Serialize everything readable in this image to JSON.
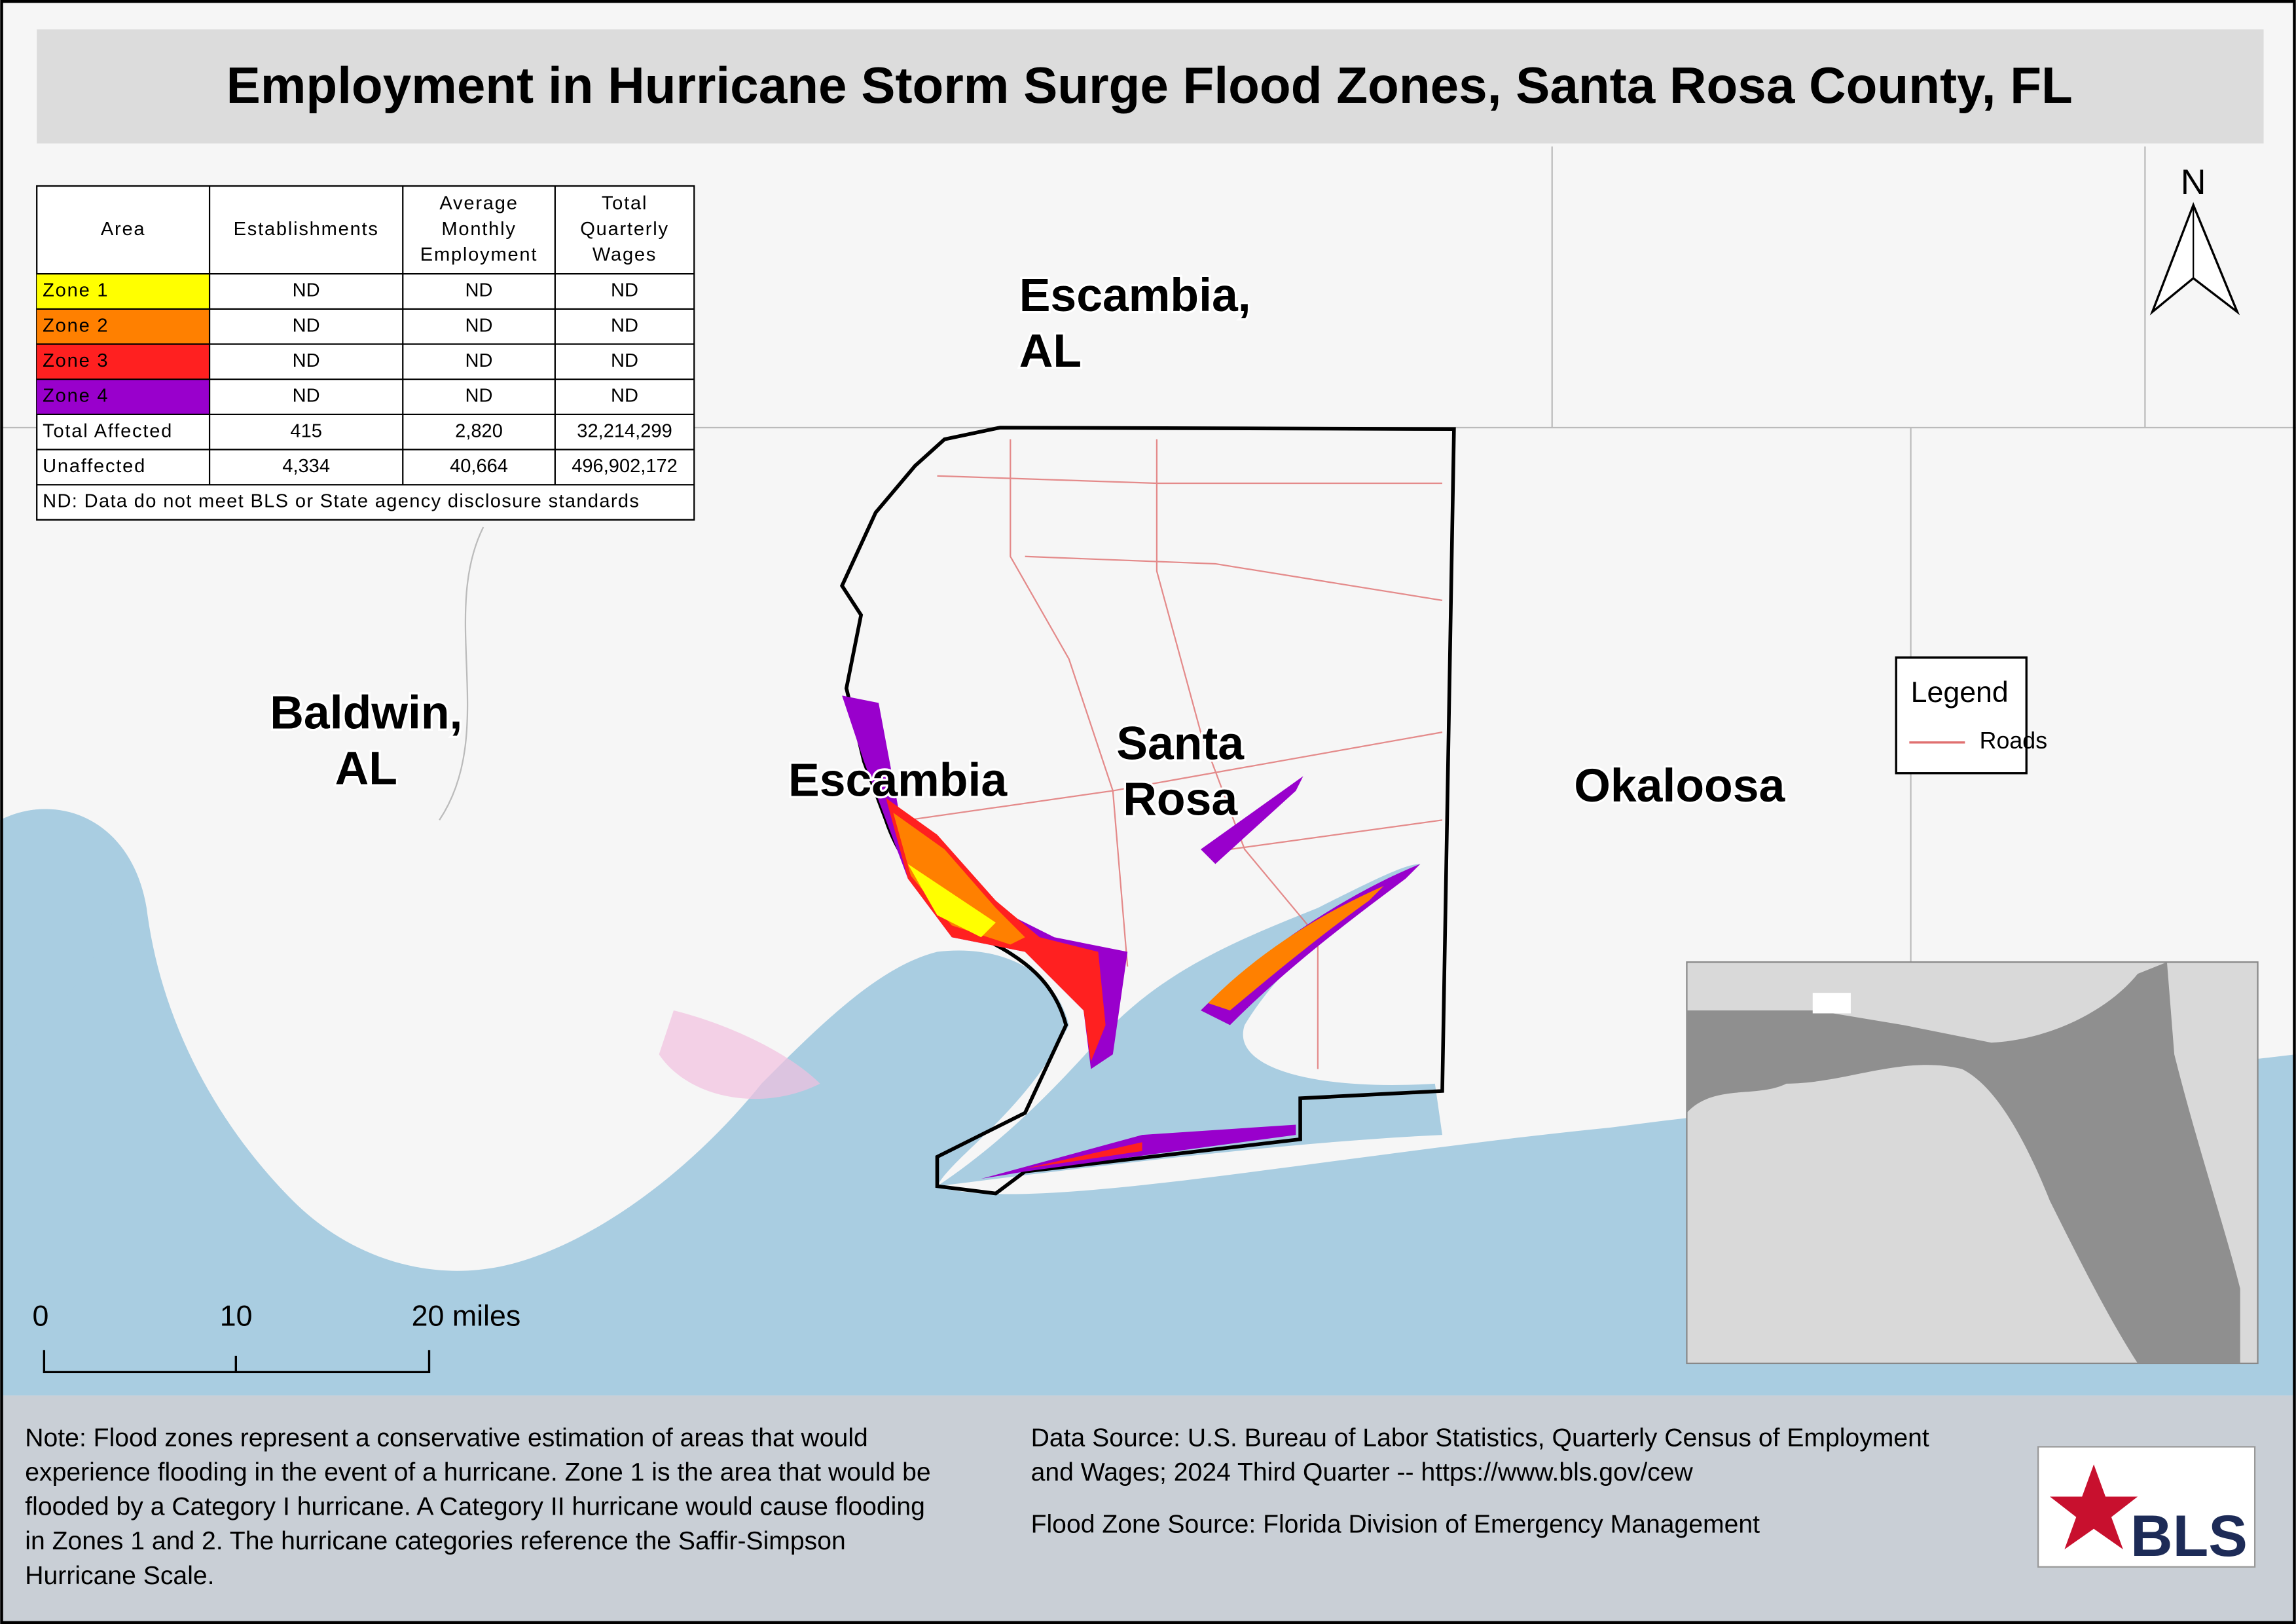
{
  "header": {
    "title": "Employment in Hurricane Storm Surge Flood Zones, Santa Rosa County, FL"
  },
  "table": {
    "columns": [
      [
        "Area"
      ],
      [
        "Establishments"
      ],
      [
        "Average",
        "Monthly",
        "Employment"
      ],
      [
        "Total",
        "Quarterly",
        "Wages"
      ]
    ],
    "rows": [
      {
        "area": "Zone 1",
        "color": "#ffff00",
        "cells": [
          "ND",
          "ND",
          "ND"
        ]
      },
      {
        "area": "Zone 2",
        "color": "#ff8000",
        "cells": [
          "ND",
          "ND",
          "ND"
        ]
      },
      {
        "area": "Zone 3",
        "color": "#ff2020",
        "cells": [
          "ND",
          "ND",
          "ND"
        ]
      },
      {
        "area": "Zone 4",
        "color": "#9900cc",
        "cells": [
          "ND",
          "ND",
          "ND"
        ]
      },
      {
        "area": "Total Affected",
        "cells": [
          "415",
          "2,820",
          "32,214,299"
        ]
      },
      {
        "area": "Unaffected",
        "cells": [
          "4,334",
          "40,664",
          "496,902,172"
        ]
      }
    ],
    "footnote": "ND: Data do not meet BLS or State agency disclosure standards"
  },
  "map_labels": [
    {
      "lines": [
        "Escambia,",
        "AL"
      ]
    },
    {
      "lines": [
        "Baldwin,",
        "AL"
      ]
    },
    {
      "lines": [
        "Escambia"
      ]
    },
    {
      "lines": [
        "Santa",
        "Rosa"
      ]
    },
    {
      "lines": [
        "Okaloosa"
      ]
    }
  ],
  "north_arrow": "N",
  "legend": {
    "title": "Legend",
    "items": [
      {
        "label": "Roads",
        "color": "#e07070"
      }
    ]
  },
  "scale_bar": {
    "labels": [
      "0",
      "10",
      "20 miles"
    ]
  },
  "note": {
    "lines": [
      "Note: Flood zones represent a conservative estimation of areas that would",
      "experience flooding in the event of a hurricane. Zone 1 is the area that would be",
      "flooded by a Category I hurricane. A Category II hurricane would cause flooding",
      "in Zones 1 and 2. The hurricane categories reference the Saffir-Simpson",
      "Hurricane Scale."
    ]
  },
  "sources": {
    "data_source": [
      "Data Source: U.S. Bureau of Labor Statistics, Quarterly Census of Employment",
      "and Wages; 2024 Third Quarter -- https://www.bls.gov/cew"
    ],
    "flood_zone_source": "Flood Zone Source: Florida Division of Emergency Management"
  },
  "logo": "BLS"
}
